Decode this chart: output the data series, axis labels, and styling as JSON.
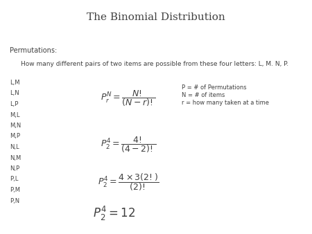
{
  "title": "The Binomial Distribution",
  "subtitle_label": "Permutations:",
  "question": "How many different pairs of two items are possible from these four letters: L, M. N, P.",
  "pairs": [
    "L,M",
    "L,N",
    "L,P",
    "M,L",
    "M,N",
    "M,P",
    "N,L",
    "N,M",
    "N,P",
    "P,L",
    "P,M",
    "P,N"
  ],
  "formula1": "$P_r^N = \\dfrac{N!}{(N-r)!}$",
  "formula2": "$P_2^4 = \\dfrac{4!}{(4-2)!}$",
  "formula3": "$P_2^4 = \\dfrac{4 \\times 3(2!)}{(2)!}$",
  "formula4": "$P_2^4 = 12$",
  "legend1": "P = # of Permutations",
  "legend2": "N = # of items",
  "legend3": "r = how many taken at a time",
  "bg_color": "#ffffff",
  "text_color": "#404040",
  "title_fontsize": 11,
  "body_fontsize": 7,
  "formula_fontsize": 9,
  "formula4_fontsize": 12,
  "legend_fontsize": 6
}
